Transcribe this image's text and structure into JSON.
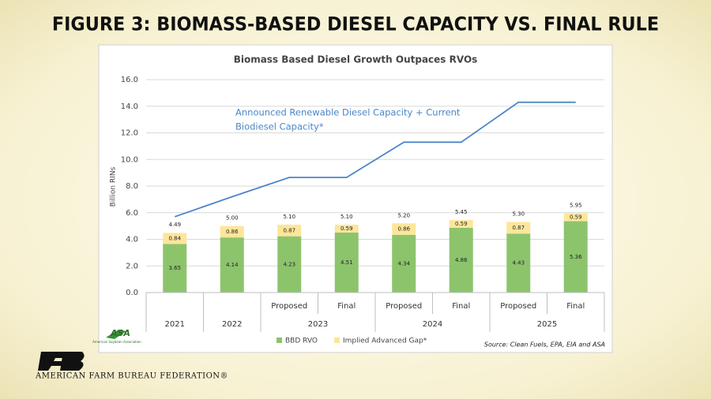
{
  "slide_title": "FIGURE 3: BIOMASS-BASED DIESEL CAPACITY VS. FINAL RULE",
  "footer": {
    "organization": "AMERICAN FARM BUREAU FEDERATION®"
  },
  "chart_data": {
    "type": "bar",
    "stacked": true,
    "title": "Biomass Based Diesel Growth Outpaces RVOs",
    "ylabel": "Billion RINs",
    "ylim": [
      0,
      16
    ],
    "yticks": [
      {
        "value": 0,
        "label": "0.0"
      },
      {
        "value": 2,
        "label": "2.0"
      },
      {
        "value": 4,
        "label": "4.0"
      },
      {
        "value": 6,
        "label": "6.0"
      },
      {
        "value": 8,
        "label": "8.0"
      },
      {
        "value": 10,
        "label": "10.0"
      },
      {
        "value": 12,
        "label": "12.0"
      },
      {
        "value": 14,
        "label": "14.0"
      },
      {
        "value": 16,
        "label": "16.0"
      }
    ],
    "grid": true,
    "categories": [
      null,
      null,
      "Proposed",
      "Final",
      "Proposed",
      "Final",
      "Proposed",
      "Final"
    ],
    "groups": [
      {
        "name": "2021",
        "count": 1
      },
      {
        "name": "2022",
        "count": 1
      },
      {
        "name": "2023",
        "count": 2
      },
      {
        "name": "2024",
        "count": 2
      },
      {
        "name": "2025",
        "count": 2
      }
    ],
    "series": [
      {
        "name": "BBD RVO",
        "color": "#8cc46c",
        "values": [
          3.65,
          4.14,
          4.23,
          4.51,
          4.34,
          4.86,
          4.43,
          5.36
        ]
      },
      {
        "name": "Implied Advanced Gap*",
        "color": "#fde69a",
        "values": [
          0.84,
          0.86,
          0.87,
          0.59,
          0.86,
          0.59,
          0.87,
          0.59
        ]
      }
    ],
    "totals": {
      "values": [
        4.49,
        5.0,
        5.1,
        5.1,
        5.2,
        5.45,
        5.3,
        5.95
      ],
      "value_labels": [
        "4.49",
        "5.00",
        "5.10",
        "5.10",
        "5.20",
        "5.45",
        "5.30",
        "5.95"
      ]
    },
    "line": {
      "label_lines": [
        "Announced Renewable Diesel Capacity + Current",
        "Biodiesel Capacity*"
      ],
      "color": "#4a86c8",
      "values": [
        5.7,
        7.2,
        8.65,
        8.65,
        11.3,
        11.3,
        14.3,
        14.3
      ]
    },
    "legend": "bottom",
    "source": "Source: Clean Fuels, EPA, EIA and ASA",
    "logo": {
      "name": "ASA",
      "subtitle": "American Soybean Association"
    }
  }
}
